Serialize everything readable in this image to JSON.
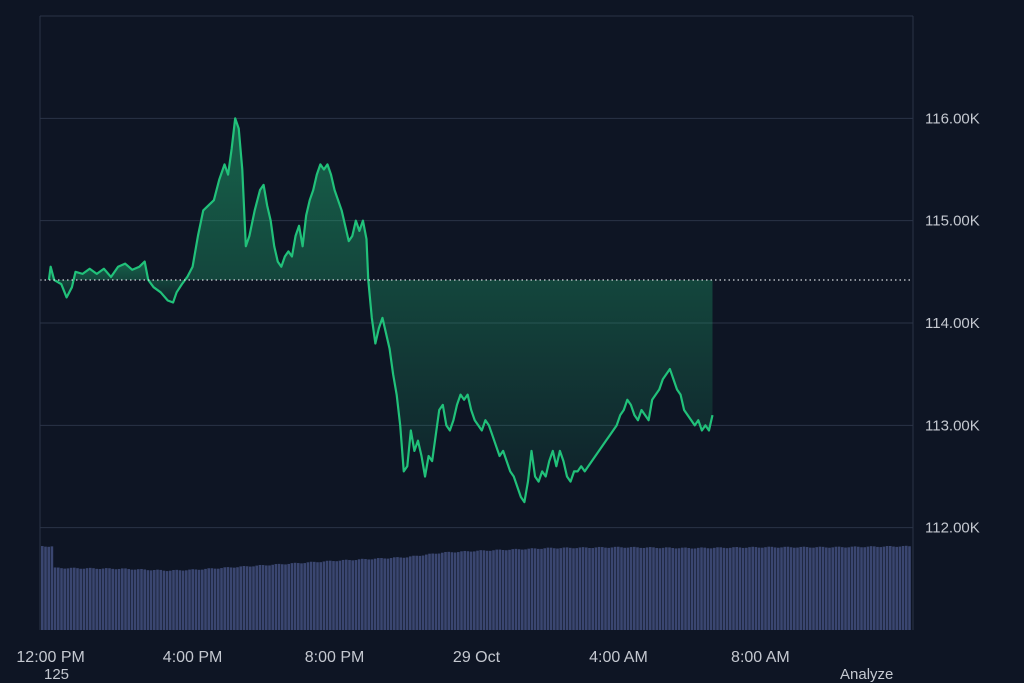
{
  "chart_data": {
    "type": "area",
    "theme": "dark",
    "baseline": 114.42,
    "ylim": [
      111.0,
      117.0
    ],
    "y_unit": "K",
    "y_ticks": [
      112,
      113,
      114,
      115,
      116
    ],
    "y_tick_labels": [
      "112.00K",
      "113.00K",
      "114.00K",
      "115.00K",
      "116.00K"
    ],
    "x_range_hours": [
      -0.3,
      24.3
    ],
    "x_ticks": [
      {
        "hour": 0,
        "label": "12:00 PM"
      },
      {
        "hour": 4,
        "label": "4:00 PM"
      },
      {
        "hour": 8,
        "label": "8:00 PM"
      },
      {
        "hour": 12,
        "label": "29 Oct"
      },
      {
        "hour": 16,
        "label": "4:00 AM"
      },
      {
        "hour": 20,
        "label": "8:00 AM"
      }
    ],
    "colors": {
      "up": "#21c17a",
      "down": "#f0424b",
      "volume": "#3a4670",
      "grid": "#2a3346",
      "baseline": "#d6d9de",
      "axis_text": "#c4c8d0"
    },
    "series": [
      {
        "type": "price",
        "points": [
          [
            -0.05,
            114.42
          ],
          [
            0.0,
            114.55
          ],
          [
            0.1,
            114.42
          ],
          [
            0.3,
            114.38
          ],
          [
            0.45,
            114.25
          ],
          [
            0.6,
            114.35
          ],
          [
            0.7,
            114.5
          ],
          [
            0.9,
            114.48
          ],
          [
            1.1,
            114.53
          ],
          [
            1.3,
            114.48
          ],
          [
            1.5,
            114.53
          ],
          [
            1.7,
            114.45
          ],
          [
            1.9,
            114.55
          ],
          [
            2.1,
            114.58
          ],
          [
            2.3,
            114.52
          ],
          [
            2.5,
            114.55
          ],
          [
            2.65,
            114.6
          ],
          [
            2.75,
            114.42
          ],
          [
            2.9,
            114.35
          ],
          [
            3.1,
            114.3
          ],
          [
            3.3,
            114.22
          ],
          [
            3.45,
            114.2
          ],
          [
            3.55,
            114.3
          ],
          [
            3.7,
            114.38
          ],
          [
            3.85,
            114.45
          ],
          [
            4.0,
            114.55
          ],
          [
            4.15,
            114.85
          ],
          [
            4.3,
            115.1
          ],
          [
            4.45,
            115.15
          ],
          [
            4.6,
            115.2
          ],
          [
            4.75,
            115.4
          ],
          [
            4.9,
            115.55
          ],
          [
            5.0,
            115.45
          ],
          [
            5.1,
            115.7
          ],
          [
            5.2,
            116.0
          ],
          [
            5.3,
            115.9
          ],
          [
            5.4,
            115.5
          ],
          [
            5.5,
            114.75
          ],
          [
            5.6,
            114.85
          ],
          [
            5.75,
            115.1
          ],
          [
            5.9,
            115.3
          ],
          [
            6.0,
            115.35
          ],
          [
            6.1,
            115.15
          ],
          [
            6.2,
            115.0
          ],
          [
            6.3,
            114.75
          ],
          [
            6.4,
            114.6
          ],
          [
            6.5,
            114.55
          ],
          [
            6.6,
            114.65
          ],
          [
            6.7,
            114.7
          ],
          [
            6.8,
            114.65
          ],
          [
            6.9,
            114.85
          ],
          [
            7.0,
            114.95
          ],
          [
            7.1,
            114.75
          ],
          [
            7.2,
            115.05
          ],
          [
            7.3,
            115.2
          ],
          [
            7.4,
            115.3
          ],
          [
            7.5,
            115.45
          ],
          [
            7.6,
            115.55
          ],
          [
            7.7,
            115.5
          ],
          [
            7.8,
            115.55
          ],
          [
            7.9,
            115.45
          ],
          [
            8.0,
            115.3
          ],
          [
            8.1,
            115.2
          ],
          [
            8.2,
            115.1
          ],
          [
            8.3,
            114.95
          ],
          [
            8.4,
            114.8
          ],
          [
            8.5,
            114.85
          ],
          [
            8.6,
            115.0
          ],
          [
            8.7,
            114.9
          ],
          [
            8.8,
            115.0
          ],
          [
            8.9,
            114.82
          ],
          [
            8.95,
            114.42
          ],
          [
            9.05,
            114.05
          ],
          [
            9.15,
            113.8
          ],
          [
            9.25,
            113.95
          ],
          [
            9.35,
            114.05
          ],
          [
            9.45,
            113.9
          ],
          [
            9.55,
            113.75
          ],
          [
            9.65,
            113.5
          ],
          [
            9.75,
            113.3
          ],
          [
            9.85,
            113.0
          ],
          [
            9.95,
            112.55
          ],
          [
            10.05,
            112.6
          ],
          [
            10.15,
            112.95
          ],
          [
            10.25,
            112.75
          ],
          [
            10.35,
            112.85
          ],
          [
            10.45,
            112.7
          ],
          [
            10.55,
            112.5
          ],
          [
            10.65,
            112.7
          ],
          [
            10.75,
            112.65
          ],
          [
            10.85,
            112.9
          ],
          [
            10.95,
            113.15
          ],
          [
            11.05,
            113.2
          ],
          [
            11.15,
            113.0
          ],
          [
            11.25,
            112.95
          ],
          [
            11.35,
            113.05
          ],
          [
            11.45,
            113.2
          ],
          [
            11.55,
            113.3
          ],
          [
            11.65,
            113.25
          ],
          [
            11.75,
            113.3
          ],
          [
            11.85,
            113.15
          ],
          [
            11.95,
            113.05
          ],
          [
            12.05,
            113.0
          ],
          [
            12.15,
            112.95
          ],
          [
            12.25,
            113.05
          ],
          [
            12.35,
            113.0
          ],
          [
            12.45,
            112.9
          ],
          [
            12.55,
            112.8
          ],
          [
            12.65,
            112.7
          ],
          [
            12.75,
            112.75
          ],
          [
            12.85,
            112.65
          ],
          [
            12.95,
            112.55
          ],
          [
            13.05,
            112.5
          ],
          [
            13.15,
            112.4
          ],
          [
            13.25,
            112.3
          ],
          [
            13.35,
            112.25
          ],
          [
            13.45,
            112.45
          ],
          [
            13.55,
            112.75
          ],
          [
            13.65,
            112.5
          ],
          [
            13.75,
            112.45
          ],
          [
            13.85,
            112.55
          ],
          [
            13.95,
            112.5
          ],
          [
            14.05,
            112.65
          ],
          [
            14.15,
            112.75
          ],
          [
            14.25,
            112.6
          ],
          [
            14.35,
            112.75
          ],
          [
            14.45,
            112.65
          ],
          [
            14.55,
            112.5
          ],
          [
            14.65,
            112.45
          ],
          [
            14.75,
            112.55
          ],
          [
            14.85,
            112.55
          ],
          [
            14.95,
            112.6
          ],
          [
            15.05,
            112.55
          ],
          [
            15.15,
            112.6
          ],
          [
            15.25,
            112.65
          ],
          [
            15.35,
            112.7
          ],
          [
            15.45,
            112.75
          ],
          [
            15.55,
            112.8
          ],
          [
            15.65,
            112.85
          ],
          [
            15.75,
            112.9
          ],
          [
            15.85,
            112.95
          ],
          [
            15.95,
            113.0
          ],
          [
            16.05,
            113.1
          ],
          [
            16.15,
            113.15
          ],
          [
            16.25,
            113.25
          ],
          [
            16.35,
            113.2
          ],
          [
            16.45,
            113.1
          ],
          [
            16.55,
            113.05
          ],
          [
            16.65,
            113.15
          ],
          [
            16.75,
            113.1
          ],
          [
            16.85,
            113.05
          ],
          [
            16.95,
            113.25
          ],
          [
            17.05,
            113.3
          ],
          [
            17.15,
            113.35
          ],
          [
            17.25,
            113.45
          ],
          [
            17.35,
            113.5
          ],
          [
            17.45,
            113.55
          ],
          [
            17.55,
            113.45
          ],
          [
            17.65,
            113.35
          ],
          [
            17.75,
            113.3
          ],
          [
            17.85,
            113.15
          ],
          [
            17.95,
            113.1
          ],
          [
            18.05,
            113.05
          ],
          [
            18.15,
            113.0
          ],
          [
            18.25,
            113.05
          ],
          [
            18.35,
            112.95
          ],
          [
            18.45,
            113.0
          ],
          [
            18.55,
            112.95
          ],
          [
            18.65,
            113.1
          ]
        ]
      },
      {
        "type": "volume",
        "note_level": "relative",
        "points": [
          [
            0.0,
            0.69
          ],
          [
            2.0,
            0.68
          ],
          [
            3.3,
            0.66
          ],
          [
            4.0,
            0.67
          ],
          [
            6.0,
            0.72
          ],
          [
            8.0,
            0.77
          ],
          [
            10.0,
            0.81
          ],
          [
            11.0,
            0.86
          ],
          [
            12.0,
            0.88
          ],
          [
            14.0,
            0.91
          ],
          [
            16.0,
            0.92
          ],
          [
            18.0,
            0.91
          ],
          [
            20.0,
            0.92
          ],
          [
            22.0,
            0.92
          ],
          [
            23.9,
            0.93
          ]
        ]
      }
    ]
  },
  "footer": {
    "left_text": "125",
    "right_text": "Analyze"
  }
}
